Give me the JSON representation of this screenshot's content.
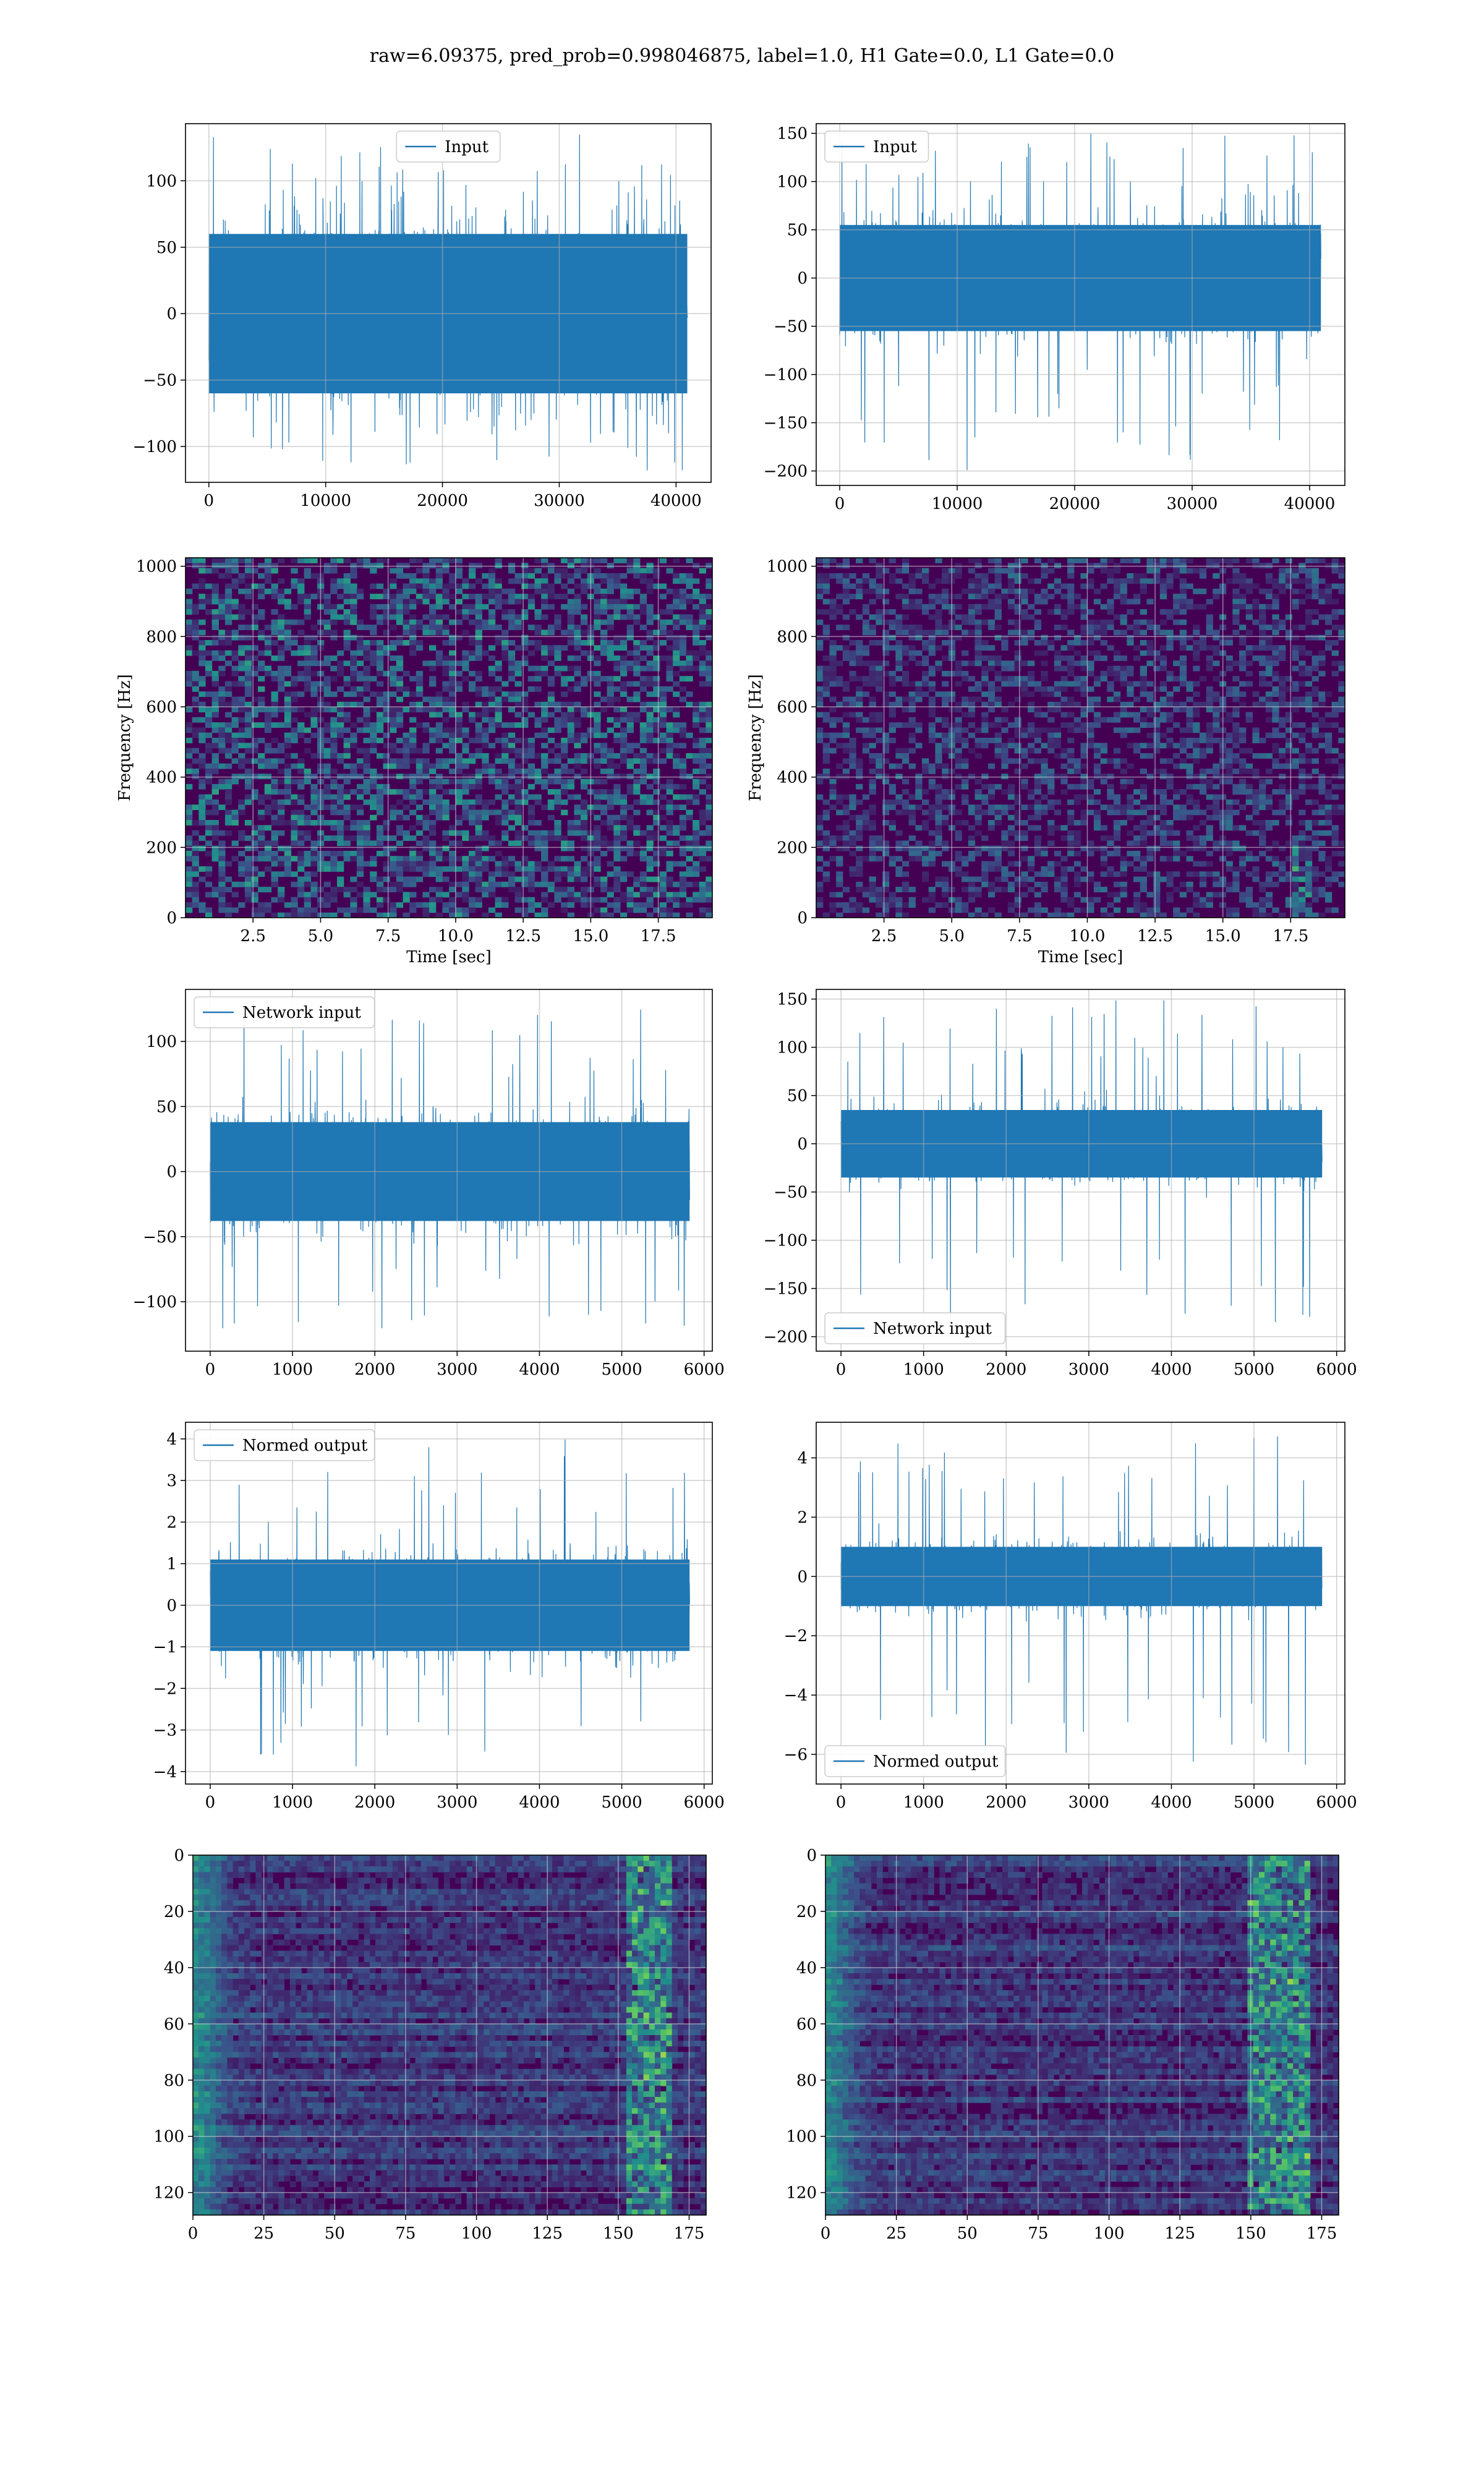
{
  "figure": {
    "title": "raw=6.09375, pred_prob=0.998046875, label=1.0, H1 Gate=0.0, L1 Gate=0.0",
    "colors": {
      "line": "#1f77b4",
      "grid": "#b0b0b0",
      "viridis_low": "#440154",
      "viridis_mid": "#21918c",
      "viridis_high": "#fde725"
    }
  },
  "chart_data": [
    {
      "id": "h1-input",
      "type": "line",
      "legend": {
        "label": "Input",
        "loc": "upper center"
      },
      "xlim": [
        -2000,
        43000
      ],
      "ylim": [
        -127,
        143
      ],
      "x_ticks": [
        0,
        10000,
        20000,
        30000,
        40000
      ],
      "y_ticks": [
        -100,
        -50,
        0,
        50,
        100
      ],
      "grid": true,
      "series": [
        {
          "n_samples": 40960,
          "x_range": [
            0,
            40960
          ],
          "envelope": [
            -118,
            136
          ],
          "core": [
            -60,
            60
          ]
        }
      ]
    },
    {
      "id": "l1-input",
      "type": "line",
      "legend": {
        "label": "Input",
        "loc": "upper left"
      },
      "xlim": [
        -2000,
        43000
      ],
      "ylim": [
        -215,
        160
      ],
      "x_ticks": [
        0,
        10000,
        20000,
        30000,
        40000
      ],
      "y_ticks": [
        -200,
        -150,
        -100,
        -50,
        0,
        50,
        100,
        150
      ],
      "grid": true,
      "series": [
        {
          "n_samples": 40960,
          "x_range": [
            0,
            40960
          ],
          "envelope": [
            -200,
            150
          ],
          "core": [
            -55,
            55
          ]
        }
      ]
    },
    {
      "id": "h1-spectrogram",
      "type": "heatmap",
      "xlabel": "Time [sec]",
      "ylabel": "Frequency [Hz]",
      "xlim": [
        0,
        19.5
      ],
      "ylim": [
        0,
        1024
      ],
      "x_ticks": [
        2.5,
        5.0,
        7.5,
        10.0,
        12.5,
        15.0,
        17.5
      ],
      "x_tick_labels": [
        "2.5",
        "5.0",
        "7.5",
        "10.0",
        "12.5",
        "15.0",
        "17.5"
      ],
      "y_ticks": [
        0,
        200,
        400,
        600,
        800,
        1000
      ],
      "grid": true,
      "colormap": "viridis"
    },
    {
      "id": "l1-spectrogram",
      "type": "heatmap",
      "xlabel": "Time [sec]",
      "ylabel": "Frequency [Hz]",
      "xlim": [
        0,
        19.5
      ],
      "ylim": [
        0,
        1024
      ],
      "x_ticks": [
        2.5,
        5.0,
        7.5,
        10.0,
        12.5,
        15.0,
        17.5
      ],
      "x_tick_labels": [
        "2.5",
        "5.0",
        "7.5",
        "10.0",
        "12.5",
        "15.0",
        "17.5"
      ],
      "y_ticks": [
        0,
        200,
        400,
        600,
        800,
        1000
      ],
      "grid": true,
      "colormap": "viridis"
    },
    {
      "id": "h1-network-input",
      "type": "line",
      "legend": {
        "label": "Network input",
        "loc": "upper left"
      },
      "xlim": [
        -300,
        6100
      ],
      "ylim": [
        -138,
        140
      ],
      "x_ticks": [
        0,
        1000,
        2000,
        3000,
        4000,
        5000,
        6000
      ],
      "y_ticks": [
        -100,
        -50,
        0,
        50,
        100
      ],
      "grid": true,
      "series": [
        {
          "n_samples": 5824,
          "x_range": [
            0,
            5824
          ],
          "envelope": [
            -122,
            128
          ],
          "core": [
            -38,
            38
          ]
        }
      ]
    },
    {
      "id": "l1-network-input",
      "type": "line",
      "legend": {
        "label": "Network input",
        "loc": "lower left"
      },
      "xlim": [
        -300,
        6100
      ],
      "ylim": [
        -215,
        160
      ],
      "x_ticks": [
        0,
        1000,
        2000,
        3000,
        4000,
        5000,
        6000
      ],
      "y_ticks": [
        -200,
        -150,
        -100,
        -50,
        0,
        50,
        100,
        150
      ],
      "grid": true,
      "series": [
        {
          "n_samples": 5824,
          "x_range": [
            0,
            5824
          ],
          "envelope": [
            -198,
            150
          ],
          "core": [
            -35,
            35
          ]
        }
      ]
    },
    {
      "id": "h1-normed-output",
      "type": "line",
      "legend": {
        "label": "Normed output",
        "loc": "upper left"
      },
      "xlim": [
        -300,
        6100
      ],
      "ylim": [
        -4.3,
        4.4
      ],
      "x_ticks": [
        0,
        1000,
        2000,
        3000,
        4000,
        5000,
        6000
      ],
      "y_ticks": [
        -4,
        -3,
        -2,
        -1,
        0,
        1,
        2,
        3,
        4
      ],
      "grid": true,
      "series": [
        {
          "n_samples": 5824,
          "x_range": [
            0,
            5824
          ],
          "envelope": [
            -3.9,
            4.0
          ],
          "core": [
            -1.1,
            1.1
          ]
        }
      ]
    },
    {
      "id": "l1-normed-output",
      "type": "line",
      "legend": {
        "label": "Normed output",
        "loc": "lower left"
      },
      "xlim": [
        -300,
        6100
      ],
      "ylim": [
        -7.0,
        5.2
      ],
      "x_ticks": [
        0,
        1000,
        2000,
        3000,
        4000,
        5000,
        6000
      ],
      "y_ticks": [
        -6,
        -4,
        -2,
        0,
        2,
        4
      ],
      "grid": true,
      "series": [
        {
          "n_samples": 5824,
          "x_range": [
            0,
            5824
          ],
          "envelope": [
            -6.5,
            4.9
          ],
          "core": [
            -1.0,
            1.0
          ]
        }
      ]
    },
    {
      "id": "h1-feature-map",
      "type": "heatmap",
      "xlim": [
        0,
        181
      ],
      "ylim": [
        128,
        0
      ],
      "x_ticks": [
        0,
        25,
        50,
        75,
        100,
        125,
        150,
        175
      ],
      "y_ticks": [
        0,
        20,
        40,
        60,
        80,
        100,
        120
      ],
      "grid": true,
      "colormap": "viridis",
      "bright_band_x": [
        152,
        168
      ]
    },
    {
      "id": "l1-feature-map",
      "type": "heatmap",
      "xlim": [
        0,
        181
      ],
      "ylim": [
        128,
        0
      ],
      "x_ticks": [
        0,
        25,
        50,
        75,
        100,
        125,
        150,
        175
      ],
      "y_ticks": [
        0,
        20,
        40,
        60,
        80,
        100,
        120
      ],
      "grid": true,
      "colormap": "viridis",
      "bright_band_x": [
        148,
        170
      ]
    }
  ]
}
